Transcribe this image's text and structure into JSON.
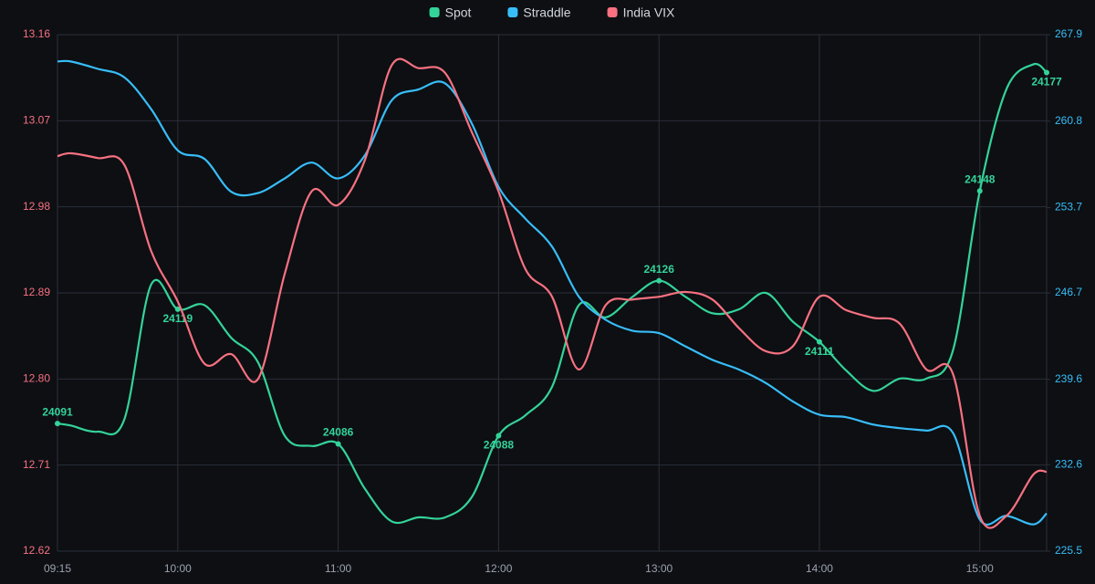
{
  "chart_data": {
    "type": "line",
    "legend": "top",
    "grid": true,
    "x": [
      "09:15",
      "09:20",
      "09:30",
      "09:40",
      "09:50",
      "10:00",
      "10:10",
      "10:20",
      "10:30",
      "10:40",
      "10:50",
      "11:00",
      "11:10",
      "11:20",
      "11:30",
      "11:40",
      "11:50",
      "12:00",
      "12:10",
      "12:20",
      "12:30",
      "12:40",
      "12:50",
      "13:00",
      "13:10",
      "13:20",
      "13:30",
      "13:40",
      "13:50",
      "14:00",
      "14:10",
      "14:20",
      "14:30",
      "14:40",
      "14:50",
      "15:00",
      "15:10",
      "15:20",
      "15:25"
    ],
    "xlim": [
      "09:15",
      "15:25"
    ],
    "xticks": [
      "09:15",
      "10:00",
      "11:00",
      "12:00",
      "13:00",
      "14:00",
      "15:00"
    ],
    "ylim": [
      12.62,
      13.16
    ],
    "yticks": [
      12.62,
      12.71,
      {
        "value": 12.8,
        "label": "12.80"
      },
      12.89,
      12.98,
      13.07,
      13.16
    ],
    "y2lim": [
      225.5,
      267.9
    ],
    "y2ticks": [
      225.5,
      232.6,
      239.6,
      246.7,
      253.7,
      260.8,
      267.9
    ],
    "series": [
      {
        "name": "Spot",
        "color": "#34d399",
        "axis": "y3",
        "data_labels": true,
        "values": [
          24091,
          24090.5,
          24089,
          24092,
          24125,
          24119,
          24120,
          24112,
          24106,
          24088,
          24085.5,
          24086,
          24075,
          24067,
          24068,
          24068,
          24073,
          24088,
          24093,
          24100,
          24120,
          24117,
          24122,
          24126,
          24122,
          24118,
          24119,
          24123,
          24116,
          24111,
          24104,
          24099,
          24102,
          24102,
          24109,
          24148,
          24173,
          24179,
          24177
        ]
      },
      {
        "name": "Straddle",
        "color": "#38bdf8",
        "axis": "y2",
        "values": [
          265.7,
          265.7,
          265.1,
          264.4,
          261.8,
          258.4,
          257.7,
          255.0,
          254.9,
          256.1,
          257.4,
          256.1,
          258.0,
          262.5,
          263.4,
          263.9,
          260.6,
          255.4,
          252.8,
          250.5,
          246.4,
          244.5,
          243.6,
          243.4,
          242.3,
          241.2,
          240.4,
          239.3,
          237.8,
          236.7,
          236.5,
          235.9,
          235.6,
          235.4,
          235.2,
          228.1,
          228.4,
          227.7,
          228.6
        ]
      },
      {
        "name": "India VIX",
        "color": "#f87180",
        "axis": "y",
        "values": [
          13.033,
          13.036,
          13.031,
          13.024,
          12.934,
          12.881,
          12.816,
          12.826,
          12.8,
          12.91,
          12.996,
          12.982,
          13.029,
          13.128,
          13.125,
          13.12,
          13.058,
          12.996,
          12.915,
          12.886,
          12.81,
          12.877,
          12.883,
          12.886,
          12.891,
          12.883,
          12.853,
          12.829,
          12.834,
          12.886,
          12.872,
          12.864,
          12.858,
          12.81,
          12.805,
          12.657,
          12.657,
          12.7,
          12.703
        ]
      }
    ]
  }
}
